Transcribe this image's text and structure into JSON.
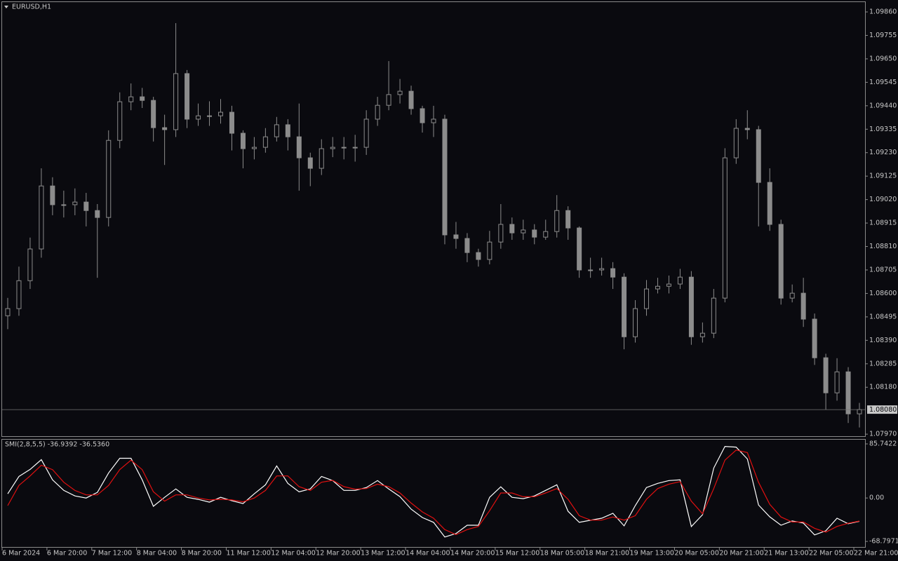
{
  "chart_data": [
    {
      "type": "candlestick",
      "title": "EURUSD,H1",
      "categories": [
        "6 Mar 2024",
        null,
        null,
        null,
        "6 Mar 20:00",
        null,
        null,
        null,
        "7 Mar 12:00",
        null,
        null,
        null,
        "8 Mar 04:00",
        null,
        null,
        null,
        "8 Mar 20:00",
        null,
        null,
        null,
        "11 Mar 12:00",
        null,
        null,
        null,
        "12 Mar 04:00",
        null,
        null,
        null,
        "12 Mar 20:00",
        null,
        null,
        null,
        "13 Mar 12:00",
        null,
        null,
        null,
        "14 Mar 04:00",
        null,
        null,
        null,
        "14 Mar 20:00",
        null,
        null,
        null,
        "15 Mar 12:00",
        null,
        null,
        null,
        "18 Mar 05:00",
        null,
        null,
        null,
        "18 Mar 21:00",
        null,
        null,
        null,
        "19 Mar 13:00",
        null,
        null,
        null,
        "20 Mar 05:00",
        null,
        null,
        null,
        "20 Mar 21:00",
        null,
        null,
        null,
        "21 Mar 13:00",
        null,
        null,
        null,
        "22 Mar 05:00",
        null,
        null,
        null,
        "22 Mar 21:00"
      ],
      "open": [
        1.085,
        1.08532,
        1.08657,
        1.08799,
        1.09081,
        1.08997,
        1.08997,
        1.09009,
        1.08971,
        1.0894,
        1.09285,
        1.09458,
        1.0948,
        1.09464,
        1.09342,
        1.09333,
        1.09584,
        1.0938,
        1.09395,
        1.09395,
        1.09411,
        1.09317,
        1.09248,
        1.09254,
        1.09301,
        1.09355,
        1.09301,
        1.09207,
        1.0916,
        1.09248,
        1.09254,
        1.09254,
        1.09254,
        1.0938,
        1.09442,
        1.0949,
        1.09505,
        1.09427,
        1.09364,
        1.0938,
        1.08862,
        1.08846,
        1.08783,
        1.08752,
        1.0883,
        1.08909,
        1.08871,
        1.08884,
        1.08852,
        1.08877,
        1.08971,
        1.08893,
        1.08705,
        1.08705,
        1.08711,
        1.08673,
        1.08406,
        1.08532,
        1.0862,
        1.08632,
        1.08642,
        1.08673,
        1.08406,
        1.08422,
        1.08579,
        1.09207,
        1.09339,
        1.09333,
        1.09097,
        1.08909,
        1.08579,
        1.08601,
        1.08485,
        1.08312,
        1.08155,
        1.08249,
        1.08061
      ],
      "high": [
        1.0858,
        1.0872,
        1.0885,
        1.0916,
        1.0912,
        1.0906,
        1.0907,
        1.0905,
        1.09,
        1.0933,
        1.095,
        1.0954,
        1.0952,
        1.0948,
        1.094,
        1.0981,
        1.096,
        1.0945,
        1.0946,
        1.0947,
        1.0944,
        1.0933,
        1.093,
        1.0934,
        1.0939,
        1.0938,
        1.0945,
        1.0923,
        1.0929,
        1.093,
        1.093,
        1.0931,
        1.0942,
        1.0948,
        1.0964,
        1.0956,
        1.0953,
        1.0944,
        1.0944,
        1.094,
        1.0892,
        1.0887,
        1.088,
        1.0888,
        1.09,
        1.0894,
        1.0893,
        1.0891,
        1.0893,
        1.0904,
        1.0899,
        1.089,
        1.0876,
        1.0876,
        1.0874,
        1.0869,
        1.0857,
        1.0866,
        1.0867,
        1.0868,
        1.0871,
        1.087,
        1.0847,
        1.0862,
        1.0925,
        1.0938,
        1.0942,
        1.0935,
        1.0916,
        1.0893,
        1.0864,
        1.0867,
        1.0851,
        1.0833,
        1.0831,
        1.0827,
        1.0811
      ],
      "low": [
        1.0844,
        1.085,
        1.0862,
        1.0876,
        1.0895,
        1.0894,
        1.0895,
        1.089,
        1.0867,
        1.089,
        1.0925,
        1.0942,
        1.0943,
        1.0928,
        1.09175,
        1.093,
        1.0934,
        1.0935,
        1.0935,
        1.0936,
        1.0924,
        1.0916,
        1.092,
        1.0923,
        1.0928,
        1.0924,
        1.0906,
        1.0908,
        1.0913,
        1.0921,
        1.092,
        1.0919,
        1.0922,
        1.0935,
        1.0942,
        1.0945,
        1.094,
        1.0932,
        1.093,
        1.0882,
        1.088,
        1.0874,
        1.0872,
        1.0873,
        1.088,
        1.0884,
        1.0884,
        1.0882,
        1.0884,
        1.0885,
        1.0884,
        1.0867,
        1.0867,
        1.0868,
        1.0862,
        1.0835,
        1.0838,
        1.085,
        1.086,
        1.086,
        1.0862,
        1.0837,
        1.0838,
        1.084,
        1.0856,
        1.0918,
        1.0929,
        1.089,
        1.0888,
        1.0855,
        1.0856,
        1.0845,
        1.0828,
        1.0808,
        1.0812,
        1.0802,
        1.08
      ],
      "close": [
        1.08532,
        1.08657,
        1.08799,
        1.09081,
        1.08997,
        1.08997,
        1.09009,
        1.08971,
        1.0894,
        1.09285,
        1.09458,
        1.0948,
        1.09464,
        1.09342,
        1.09333,
        1.09584,
        1.0938,
        1.09395,
        1.09395,
        1.09411,
        1.09317,
        1.09248,
        1.09254,
        1.09301,
        1.09355,
        1.09301,
        1.09207,
        1.0916,
        1.09248,
        1.09254,
        1.09254,
        1.09254,
        1.0938,
        1.09442,
        1.0949,
        1.09505,
        1.09427,
        1.09364,
        1.0938,
        1.08862,
        1.08846,
        1.08783,
        1.08752,
        1.0883,
        1.08909,
        1.08871,
        1.08884,
        1.08852,
        1.08877,
        1.08971,
        1.08893,
        1.08705,
        1.08705,
        1.08711,
        1.08673,
        1.08406,
        1.08532,
        1.0862,
        1.08632,
        1.08642,
        1.08673,
        1.08406,
        1.08422,
        1.08579,
        1.09207,
        1.09339,
        1.09333,
        1.09097,
        1.08909,
        1.08579,
        1.08601,
        1.08485,
        1.08312,
        1.08155,
        1.08249,
        1.08061,
        1.0808
      ],
      "color": "#8c8c8c",
      "ylim": [
        1.07961,
        1.09904
      ],
      "yticks": [
        {
          "value": 1.0986,
          "label": "1.09860"
        },
        {
          "value": 1.09755,
          "label": "1.09755"
        },
        {
          "value": 1.0965,
          "label": "1.09650"
        },
        {
          "value": 1.09545,
          "label": "1.09545"
        },
        {
          "value": 1.0944,
          "label": "1.09440"
        },
        {
          "value": 1.09335,
          "label": "1.09335"
        },
        {
          "value": 1.0923,
          "label": "1.09230"
        },
        {
          "value": 1.09125,
          "label": "1.09125"
        },
        {
          "value": 1.0902,
          "label": "1.09020"
        },
        {
          "value": 1.08915,
          "label": "1.08915"
        },
        {
          "value": 1.0881,
          "label": "1.08810"
        },
        {
          "value": 1.08705,
          "label": "1.08705"
        },
        {
          "value": 1.086,
          "label": "1.08600"
        },
        {
          "value": 1.08495,
          "label": "1.08495"
        },
        {
          "value": 1.0839,
          "label": "1.08390"
        },
        {
          "value": 1.08285,
          "label": "1.08285"
        },
        {
          "value": 1.0818,
          "label": "1.08180"
        },
        {
          "value": 1.0797,
          "label": "1.07970"
        }
      ],
      "current_price": {
        "value": 1.0808,
        "label": "1.08080"
      },
      "grid": false
    },
    {
      "type": "line",
      "title": "SMI(2,8,5,5) -36.9392 -36.5360",
      "series": [
        {
          "color": "#ffffff",
          "values": [
            6.6,
            34.2,
            45.3,
            60.7,
            28.7,
            12.1,
            3.3,
            0,
            8.8,
            39.7,
            62.9,
            62.9,
            28.7,
            -13.2,
            1.1,
            14.4,
            1.1,
            -2.2,
            -6.6,
            1.1,
            -4.4,
            -8.8,
            6.6,
            21,
            50.8,
            23.2,
            9.9,
            14.4,
            34.2,
            27.6,
            12.1,
            12.1,
            16.6,
            27.6,
            14.4,
            2.2,
            -17.7,
            -30.9,
            -38.6,
            -61.8,
            -56.3,
            -43.1,
            -43.1,
            1.1,
            17.7,
            1.1,
            -1.1,
            3.3,
            12.1,
            21,
            -21,
            -38.6,
            -35.3,
            -32,
            -24.3,
            -44.2,
            -12.1,
            16.6,
            23.2,
            27.6,
            28.7,
            -45.3,
            -26.5,
            47.5,
            81.7,
            80.6,
            61.8,
            -11,
            -29.8,
            -43.1,
            -36.4,
            -39.7,
            -58.5,
            -51.9,
            -32,
            -40.8,
            -36.9392
          ]
        },
        {
          "color": "#e01010",
          "values": [
            -12.1,
            20,
            35,
            52,
            45,
            25,
            12,
            5,
            5,
            20,
            45,
            60,
            45,
            10,
            -5,
            5,
            5,
            0,
            -3,
            -2,
            -3,
            -6,
            0,
            12,
            35,
            35,
            18,
            12,
            25,
            28,
            18,
            14,
            15,
            22,
            18,
            8,
            -8,
            -22,
            -32,
            -50,
            -58,
            -50,
            -45,
            -20,
            8,
            8,
            2,
            2,
            8,
            15,
            -2,
            -28,
            -35,
            -35,
            -30,
            -35,
            -28,
            -2,
            15,
            22,
            26,
            -5,
            -25,
            15,
            60,
            76,
            72,
            25,
            -10,
            -30,
            -38,
            -38,
            -48,
            -54,
            -45,
            -40,
            -36.536
          ]
        }
      ],
      "ylim": [
        -77.6,
        92.4
      ],
      "yticks": [
        85.7422,
        {
          "value": 0,
          "label": "0.00"
        },
        -68.7971
      ],
      "grid": false
    }
  ]
}
